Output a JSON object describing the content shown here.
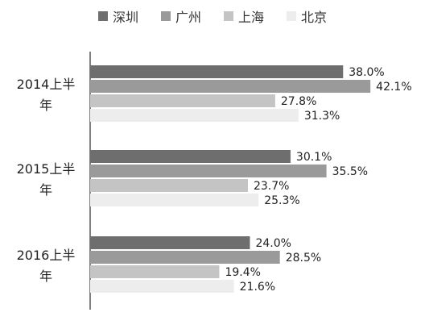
{
  "chart_data": {
    "type": "bar",
    "orientation": "horizontal",
    "categories": [
      "2014上半年",
      "2015上半年",
      "2016上半年"
    ],
    "series": [
      {
        "name": "深圳",
        "color": "#6e6e6e",
        "values": [
          38.0,
          30.1,
          24.0
        ],
        "labels": [
          "38.0%",
          "30.1%",
          "24.0%"
        ]
      },
      {
        "name": "广州",
        "color": "#9a9a9a",
        "values": [
          42.1,
          35.5,
          28.5
        ],
        "labels": [
          "42.1%",
          "35.5%",
          "28.5%"
        ]
      },
      {
        "name": "上海",
        "color": "#c4c4c4",
        "values": [
          27.8,
          23.7,
          19.4
        ],
        "labels": [
          "27.8%",
          "23.7%",
          "19.4%"
        ]
      },
      {
        "name": "北京",
        "color": "#ededed",
        "values": [
          31.3,
          25.3,
          21.6
        ],
        "labels": [
          "31.3%",
          "25.3%",
          "21.6%"
        ]
      }
    ],
    "xlim": [
      0,
      45
    ],
    "legend_position": "top",
    "grid": false
  }
}
